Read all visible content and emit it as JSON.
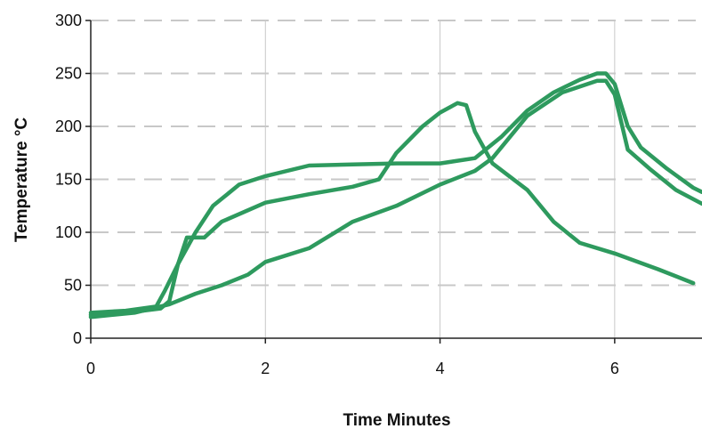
{
  "chart_data": {
    "type": "line",
    "title": "",
    "xlabel": "Time Minutes",
    "ylabel": "Temperature °C",
    "xlim": [
      0,
      7
    ],
    "ylim": [
      0,
      300
    ],
    "x_ticks": [
      0,
      2,
      4,
      6
    ],
    "y_ticks": [
      0,
      50,
      100,
      150,
      200,
      250,
      300
    ],
    "grid": true,
    "legend": "none",
    "line_color": "#2e9a5e",
    "grid_color": "#c8c8c8",
    "series": [
      {
        "points": [
          [
            0,
            24
          ],
          [
            0.4,
            26
          ],
          [
            0.75,
            30
          ],
          [
            0.85,
            45
          ],
          [
            1.0,
            70
          ],
          [
            1.2,
            100
          ],
          [
            1.4,
            125
          ],
          [
            1.7,
            145
          ],
          [
            2.0,
            153
          ],
          [
            2.5,
            163
          ],
          [
            3.0,
            164
          ],
          [
            3.5,
            165
          ],
          [
            4.0,
            165
          ],
          [
            4.4,
            170
          ],
          [
            4.7,
            190
          ],
          [
            5.0,
            215
          ],
          [
            5.3,
            232
          ],
          [
            5.6,
            244
          ],
          [
            5.8,
            250
          ],
          [
            5.9,
            250
          ],
          [
            6.0,
            240
          ],
          [
            6.15,
            200
          ],
          [
            6.3,
            180
          ],
          [
            6.6,
            160
          ],
          [
            6.9,
            142
          ],
          [
            7.0,
            138
          ]
        ]
      },
      {
        "points": [
          [
            0,
            22
          ],
          [
            0.5,
            25
          ],
          [
            0.8,
            28
          ],
          [
            0.9,
            35
          ],
          [
            1.0,
            70
          ],
          [
            1.1,
            95
          ],
          [
            1.3,
            95
          ],
          [
            1.5,
            110
          ],
          [
            2.0,
            128
          ],
          [
            2.5,
            136
          ],
          [
            3.0,
            143
          ],
          [
            3.3,
            150
          ],
          [
            3.5,
            175
          ],
          [
            3.8,
            200
          ],
          [
            4.0,
            213
          ],
          [
            4.2,
            222
          ],
          [
            4.3,
            220
          ],
          [
            4.4,
            195
          ],
          [
            4.6,
            165
          ],
          [
            5.0,
            140
          ],
          [
            5.3,
            110
          ],
          [
            5.6,
            90
          ],
          [
            6.0,
            80
          ],
          [
            6.5,
            65
          ],
          [
            6.9,
            52
          ]
        ]
      },
      {
        "points": [
          [
            0,
            20
          ],
          [
            0.5,
            24
          ],
          [
            0.9,
            32
          ],
          [
            1.2,
            42
          ],
          [
            1.5,
            50
          ],
          [
            1.8,
            60
          ],
          [
            2.0,
            72
          ],
          [
            2.5,
            85
          ],
          [
            3.0,
            110
          ],
          [
            3.5,
            125
          ],
          [
            4.0,
            145
          ],
          [
            4.4,
            158
          ],
          [
            4.6,
            170
          ],
          [
            5.0,
            210
          ],
          [
            5.4,
            232
          ],
          [
            5.8,
            243
          ],
          [
            5.9,
            243
          ],
          [
            6.0,
            230
          ],
          [
            6.15,
            178
          ],
          [
            6.4,
            160
          ],
          [
            6.7,
            140
          ],
          [
            7.0,
            127
          ]
        ]
      }
    ]
  }
}
